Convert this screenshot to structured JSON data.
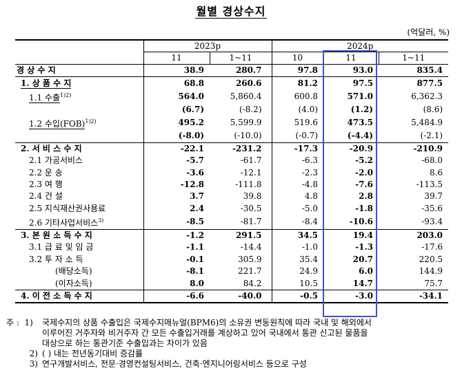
{
  "title": "월별 경상수지",
  "unit": "(억달러, %)",
  "headers": {
    "year1": "2023p",
    "year2": "2024p",
    "cols": [
      "11",
      "1~11",
      "10",
      "11",
      "1~11"
    ]
  },
  "rows": [
    {
      "label": "경 상 수 지",
      "v": [
        "38.9",
        "280.7",
        "97.8",
        "93.0",
        "835.4"
      ]
    },
    {
      "label": "1. 상 품 수 지",
      "v": [
        "68.8",
        "260.6",
        "81.2",
        "97.5",
        "877.5"
      ]
    },
    {
      "label": "1.1 수출",
      "sup": "1)2)",
      "v": [
        "564.0",
        "5,860.4",
        "600.8",
        "571.0",
        "6,362.3"
      ]
    },
    {
      "label": "",
      "v": [
        "(6.7)",
        "(-8.2)",
        "(4.0)",
        "(1.2)",
        "(8.6)"
      ]
    },
    {
      "label": "1.2 수입(FOB)",
      "sup": "1)2)",
      "v": [
        "495.2",
        "5,599.9",
        "519.6",
        "473.5",
        "5,484.9"
      ]
    },
    {
      "label": "",
      "v": [
        "(-8.0)",
        "(-10.0)",
        "(-0.7)",
        "(-4.4)",
        "(-2.1)"
      ]
    },
    {
      "label": "2. 서 비 스 수 지",
      "v": [
        "-22.1",
        "-231.2",
        "-17.3",
        "-20.9",
        "-210.9"
      ]
    },
    {
      "label": "2.1 가공서비스",
      "v": [
        "-5.7",
        "-61.7",
        "-6.3",
        "-5.2",
        "-68.0"
      ]
    },
    {
      "label": "2.2 운 송",
      "v": [
        "-3.6",
        "-12.1",
        "-2.3",
        "-2.0",
        "8.6"
      ]
    },
    {
      "label": "2.3 여 행",
      "v": [
        "-12.8",
        "-111.8",
        "-4.8",
        "-7.6",
        "-113.5"
      ]
    },
    {
      "label": "2.4 건 설",
      "v": [
        "3.7",
        "39.8",
        "4.8",
        "2.8",
        "39.7"
      ]
    },
    {
      "label": "2.5 지식재산권사용료",
      "v": [
        "2.4",
        "-30.5",
        "-5.0",
        "-1.8",
        "-35.6"
      ]
    },
    {
      "label": "2.6 기타사업서비스",
      "sup": "3)",
      "v": [
        "-8.5",
        "-81.7",
        "-8.4",
        "-10.6",
        "-93.4"
      ]
    },
    {
      "label": "3. 본 원 소 득 수 지",
      "v": [
        "-1.2",
        "291.5",
        "34.5",
        "19.4",
        "203.0"
      ]
    },
    {
      "label": "3.1 급 료 및 임 금",
      "v": [
        "-1.1",
        "-14.4",
        "-1.0",
        "-1.3",
        "-17.6"
      ]
    },
    {
      "label": "3.2 투 자 소 득",
      "v": [
        "-0.1",
        "305.9",
        "35.4",
        "20.7",
        "220.5"
      ]
    },
    {
      "label": "(배당소득)",
      "v": [
        "-8.1",
        "221.7",
        "24.9",
        "6.0",
        "144.9"
      ]
    },
    {
      "label": "(이자소득)",
      "v": [
        "8.0",
        "84.2",
        "10.5",
        "14.7",
        "75.7"
      ]
    },
    {
      "label": "4. 이 전 소 득 수 지",
      "v": [
        "-6.6",
        "-40.0",
        "-0.5",
        "-3.0",
        "-34.1"
      ]
    }
  ],
  "notes": {
    "prefix": "주 :",
    "n1_mark": "1)",
    "n1_line1": "국제수지의 상품 수출입은 국제수지매뉴얼(BPM6)의 소유권 변동원칙에 따라 국내 및 해외에서",
    "n1_line2": "이루어진 거주자와 비거주자 간 모든 수출입거래를 계상하고 있어 국내에서 통관 신고된 물품을",
    "n1_line3": "대상으로 하는 통관기준 수출입과는 차이가 있음",
    "n2_mark": "2)",
    "n2": "(    ) 내는 전년동기대비 증감률",
    "n3_mark": "3)",
    "n3": "연구개발서비스, 전문·경영컨설팅서비스, 건축·엔지니어링서비스 등으로 구성"
  }
}
